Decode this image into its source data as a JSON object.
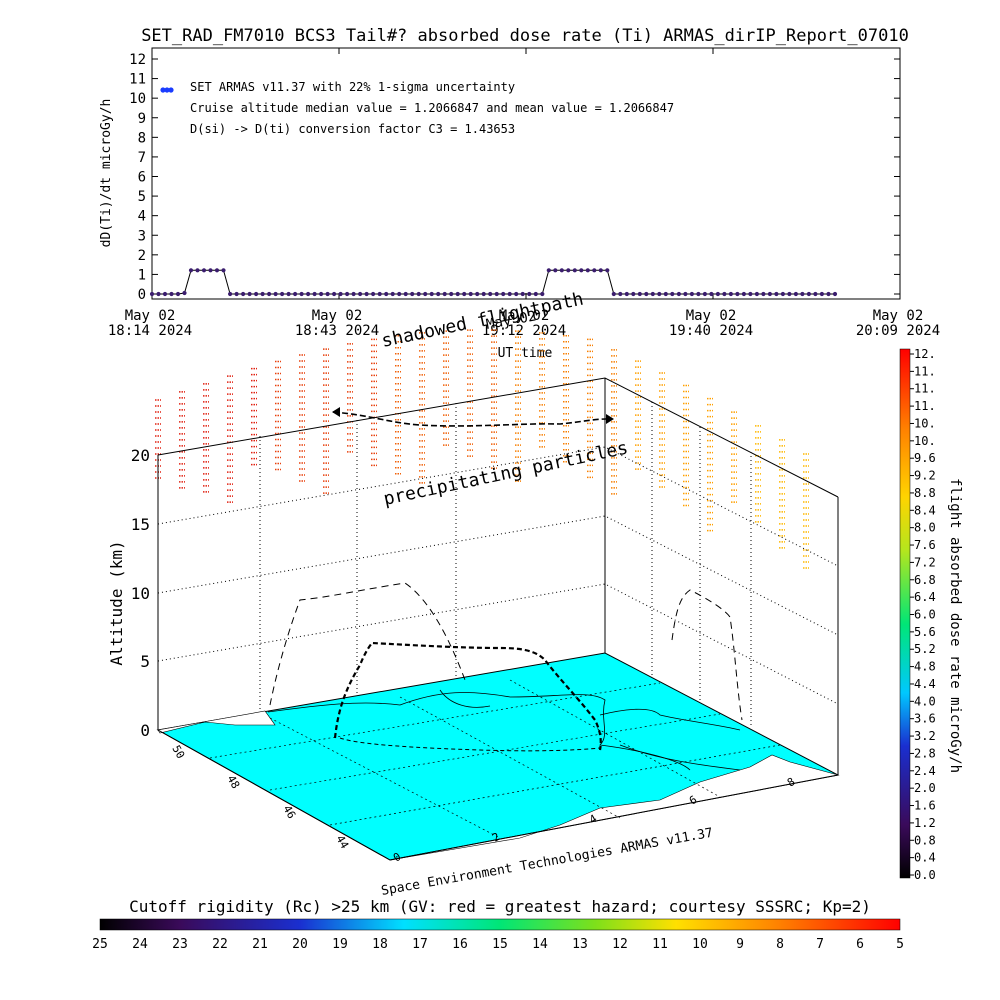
{
  "title": "SET_RAD_FM7010  BCS3 Tail#? absorbed dose rate (Ti) ARMAS_dirIP_Report_07010",
  "top_panel": {
    "ylabel": "dD(Ti)/dt microGy/h",
    "xlabel": "UT time",
    "yticks": [
      "0",
      "1",
      "2",
      "3",
      "4",
      "5",
      "6",
      "7",
      "8",
      "9",
      "10",
      "11",
      "12"
    ],
    "xticks": [
      {
        "date": "May 02",
        "time": "18:14 2024"
      },
      {
        "date": "May 02",
        "time": "18:43 2024"
      },
      {
        "date": "May 02",
        "time": "19:12 2024"
      },
      {
        "date": "May 02",
        "time": "19:40 2024"
      },
      {
        "date": "May 02",
        "time": "20:09 2024"
      }
    ],
    "legend_label": "SET ARMAS v11.37 with 22% 1-sigma uncertainty",
    "info_line_1": "Cruise altitude median value = 1.2066847 and mean value = 1.2066847",
    "info_line_2": "D(si) -> D(ti) conversion factor C3 = 1.43653"
  },
  "chart_data": [
    {
      "type": "line",
      "title": "SET_RAD_FM7010  BCS3 Tail#? absorbed dose rate (Ti) ARMAS_dirIP_Report_07010",
      "xlabel": "UT time",
      "ylabel": "dD(Ti)/dt microGy/h",
      "x_unit": "minutes after 18:14 UT, May 02 2024",
      "xlim": [
        0,
        115
      ],
      "ylim": [
        0,
        12
      ],
      "grid": false,
      "legend": "top-left",
      "series": [
        {
          "name": "SET ARMAS v11.37 with 22% 1-sigma uncertainty",
          "color": "#3b1d6e",
          "points": [
            [
              0,
              0
            ],
            [
              1,
              0
            ],
            [
              2,
              0
            ],
            [
              3,
              0
            ],
            [
              4,
              0
            ],
            [
              5,
              0.05
            ],
            [
              6,
              1.21
            ],
            [
              7,
              1.21
            ],
            [
              8,
              1.21
            ],
            [
              9,
              1.21
            ],
            [
              10,
              1.21
            ],
            [
              11,
              1.21
            ],
            [
              12,
              0
            ],
            [
              13,
              0
            ],
            [
              14,
              0
            ],
            [
              15,
              0
            ],
            [
              16,
              0
            ],
            [
              17,
              0
            ],
            [
              18,
              0
            ],
            [
              19,
              0
            ],
            [
              20,
              0
            ],
            [
              21,
              0
            ],
            [
              22,
              0
            ],
            [
              23,
              0
            ],
            [
              24,
              0
            ],
            [
              25,
              0
            ],
            [
              26,
              0
            ],
            [
              27,
              0
            ],
            [
              28,
              0
            ],
            [
              29,
              0
            ],
            [
              30,
              0
            ],
            [
              31,
              0
            ],
            [
              32,
              0
            ],
            [
              33,
              0
            ],
            [
              34,
              0
            ],
            [
              35,
              0
            ],
            [
              36,
              0
            ],
            [
              37,
              0
            ],
            [
              38,
              0
            ],
            [
              39,
              0
            ],
            [
              40,
              0
            ],
            [
              41,
              0
            ],
            [
              42,
              0
            ],
            [
              43,
              0
            ],
            [
              44,
              0
            ],
            [
              45,
              0
            ],
            [
              46,
              0
            ],
            [
              47,
              0
            ],
            [
              48,
              0
            ],
            [
              49,
              0
            ],
            [
              50,
              0
            ],
            [
              51,
              0
            ],
            [
              52,
              0
            ],
            [
              53,
              0
            ],
            [
              54,
              0
            ],
            [
              55,
              0
            ],
            [
              56,
              0
            ],
            [
              57,
              0
            ],
            [
              58,
              0
            ],
            [
              59,
              0
            ],
            [
              60,
              0
            ],
            [
              61,
              1.21
            ],
            [
              62,
              1.21
            ],
            [
              63,
              1.21
            ],
            [
              64,
              1.21
            ],
            [
              65,
              1.21
            ],
            [
              66,
              1.21
            ],
            [
              67,
              1.21
            ],
            [
              68,
              1.21
            ],
            [
              69,
              1.21
            ],
            [
              70,
              1.21
            ],
            [
              71,
              0
            ],
            [
              72,
              0
            ],
            [
              73,
              0
            ],
            [
              74,
              0
            ],
            [
              75,
              0
            ],
            [
              76,
              0
            ],
            [
              77,
              0
            ],
            [
              78,
              0
            ],
            [
              79,
              0
            ],
            [
              80,
              0
            ],
            [
              81,
              0
            ],
            [
              82,
              0
            ],
            [
              83,
              0
            ],
            [
              84,
              0
            ],
            [
              85,
              0
            ],
            [
              86,
              0
            ],
            [
              87,
              0
            ],
            [
              88,
              0
            ],
            [
              89,
              0
            ],
            [
              90,
              0
            ],
            [
              91,
              0
            ],
            [
              92,
              0
            ],
            [
              93,
              0
            ],
            [
              94,
              0
            ],
            [
              95,
              0
            ],
            [
              96,
              0
            ],
            [
              97,
              0
            ],
            [
              98,
              0
            ],
            [
              99,
              0
            ],
            [
              100,
              0
            ],
            [
              101,
              0
            ],
            [
              102,
              0
            ],
            [
              103,
              0
            ],
            [
              104,
              0
            ],
            [
              105,
              0
            ]
          ]
        }
      ]
    }
  ],
  "map_panel": {
    "zlabel": "Altitude (km)",
    "zticks": [
      "0",
      "5",
      "10",
      "15",
      "20"
    ],
    "lat_ticks": [
      "50",
      "48",
      "46",
      "44"
    ],
    "lon_ticks": [
      "0",
      "2",
      "4",
      "6",
      "8"
    ],
    "annotation_shadowed": "shadowed flightpath",
    "annotation_shadowed_date": "May 02",
    "annotation_particles": "precipitating particles",
    "credit": "Space Environment Technologies ARMAS v11.37",
    "colors": {
      "ground": "#00ffff",
      "box": "#000000",
      "sea": "#ffffff"
    }
  },
  "right_colorbar": {
    "label": "flight absorbed dose rate microGy/h",
    "ticks": [
      "0.0",
      "0.4",
      "0.8",
      "1.2",
      "1.6",
      "2.0",
      "2.4",
      "2.8",
      "3.2",
      "3.6",
      "4.0",
      "4.4",
      "4.8",
      "5.2",
      "5.6",
      "6.0",
      "6.4",
      "6.8",
      "7.2",
      "7.6",
      "8.0",
      "8.4",
      "8.8",
      "9.2",
      "9.6",
      "10.",
      "10.",
      "11.",
      "11.",
      "11.",
      "12."
    ]
  },
  "bottom_colorbar": {
    "label": "Cutoff rigidity (Rc) >25 km (GV: red = greatest hazard; courtesy SSSRC; Kp=2)",
    "ticks": [
      "25",
      "24",
      "23",
      "22",
      "21",
      "20",
      "19",
      "18",
      "17",
      "16",
      "15",
      "14",
      "13",
      "12",
      "11",
      "10",
      "9",
      "8",
      "7",
      "6",
      "5"
    ]
  }
}
